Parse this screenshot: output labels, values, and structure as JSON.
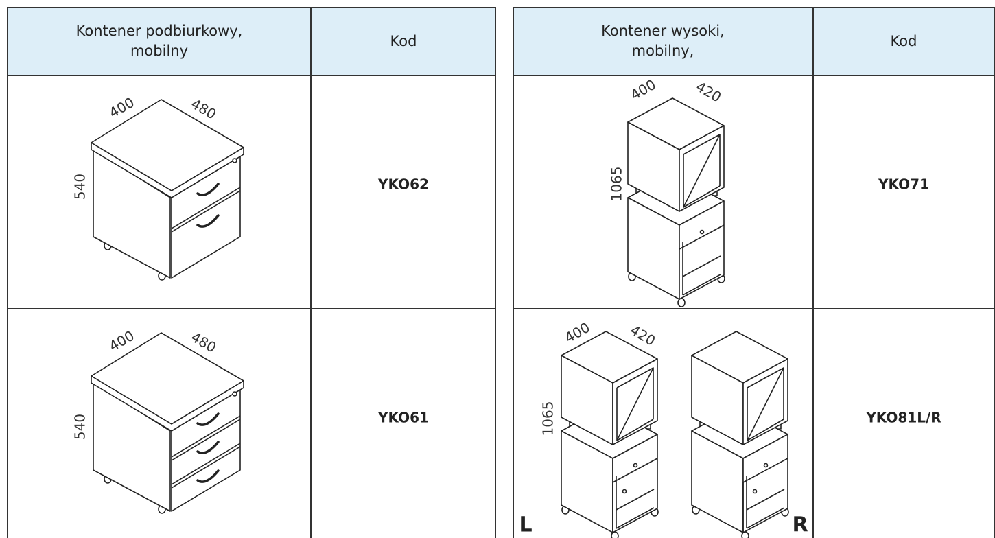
{
  "tables": [
    {
      "header": {
        "title_lines": [
          "Kontener podbiurkowy,",
          "mobilny"
        ],
        "code": "Kod"
      },
      "rows": [
        {
          "dims": [
            "400",
            "480",
            "540"
          ],
          "code": "YKO62"
        },
        {
          "dims": [
            "400",
            "480",
            "540"
          ],
          "code": "YKO61"
        }
      ]
    },
    {
      "header": {
        "title_lines": [
          "Kontener wysoki,",
          "mobilny,"
        ],
        "code": "Kod"
      },
      "rows": [
        {
          "dims": [
            "400",
            "420",
            "1065"
          ],
          "code": "YKO71"
        },
        {
          "dims": [
            "400",
            "420",
            "1065"
          ],
          "code": "YKO81L/R",
          "sides": [
            "L",
            "R"
          ]
        }
      ]
    }
  ]
}
